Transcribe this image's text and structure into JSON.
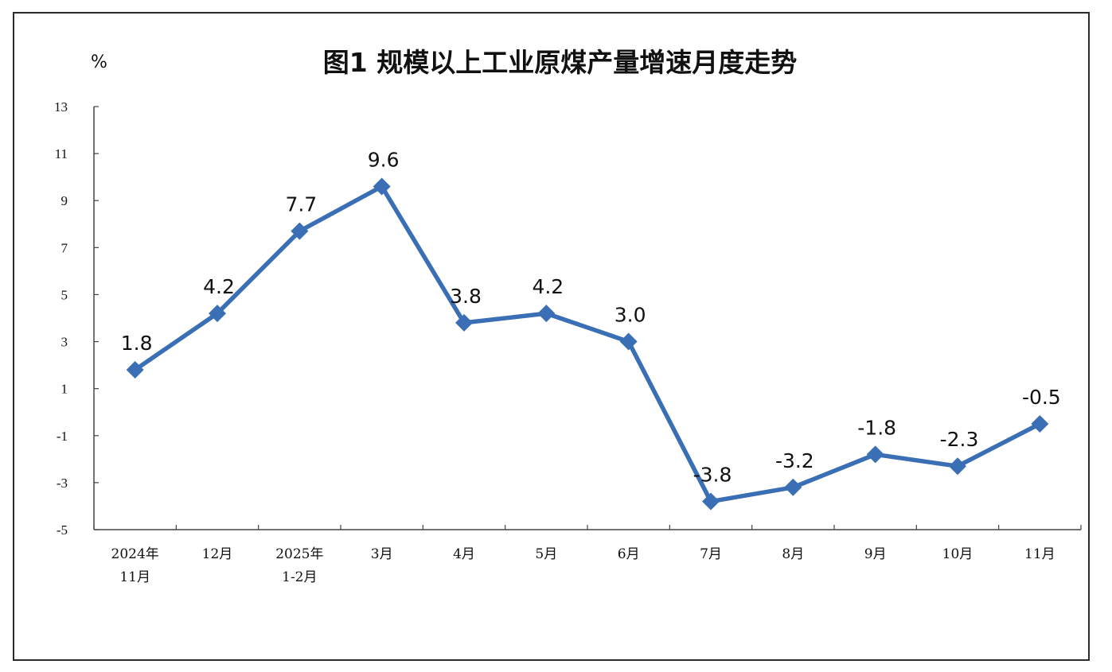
{
  "chart_data": {
    "type": "line",
    "title": "图1  规模以上工业原煤产量增速月度走势",
    "ylabel": "%",
    "xlabel": "",
    "ylim": [
      -5,
      13
    ],
    "yticks": [
      "13",
      "11",
      "9",
      "7",
      "5",
      "3",
      "1",
      "-1",
      "-3",
      "-5"
    ],
    "grid": false,
    "categories": [
      [
        "2024年",
        "11月"
      ],
      [
        "12月"
      ],
      [
        "2025年",
        "1-2月"
      ],
      [
        "3月"
      ],
      [
        "4月"
      ],
      [
        "5月"
      ],
      [
        "6月"
      ],
      [
        "7月"
      ],
      [
        "8月"
      ],
      [
        "9月"
      ],
      [
        "10月"
      ],
      [
        "11月"
      ]
    ],
    "series": [
      {
        "values": [
          1.8,
          4.2,
          7.7,
          9.6,
          3.8,
          4.2,
          3.0,
          -3.8,
          -3.2,
          -1.8,
          -2.3,
          -0.5
        ],
        "labels": [
          "1.8",
          "4.2",
          "7.7",
          "9.6",
          "3.8",
          "4.2",
          "3.0",
          "-3.8",
          "-3.2",
          "-1.8",
          "-2.3",
          "-0.5"
        ],
        "color": "#3a6fb5",
        "marker": "diamond"
      }
    ]
  }
}
